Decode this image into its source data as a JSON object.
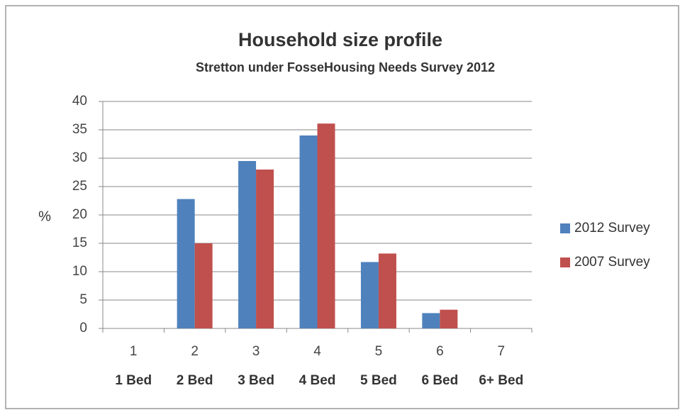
{
  "chart_data": {
    "type": "bar",
    "title": "Household size profile",
    "subtitle": "Stretton under FosseHousing Needs Survey 2012",
    "y_label": "%",
    "categories": [
      "1",
      "2",
      "3",
      "4",
      "5",
      "6",
      "7"
    ],
    "category_labels": [
      "1 Bed",
      "2 Bed",
      "3 Bed",
      "4 Bed",
      "5 Bed",
      "6 Bed",
      "6+ Bed"
    ],
    "series": [
      {
        "name": "2012 Survey",
        "color": "#4f81bd",
        "values": [
          0,
          22.8,
          29.5,
          34,
          11.7,
          2.7,
          0
        ]
      },
      {
        "name": "2007 Survey",
        "color": "#c0504d",
        "values": [
          0,
          15,
          28,
          36.1,
          13.2,
          3.3,
          0
        ]
      }
    ],
    "ylim": [
      0,
      40
    ],
    "yticks": [
      0,
      5,
      10,
      15,
      20,
      25,
      30,
      35,
      40
    ],
    "grid": true,
    "legend": "right"
  }
}
